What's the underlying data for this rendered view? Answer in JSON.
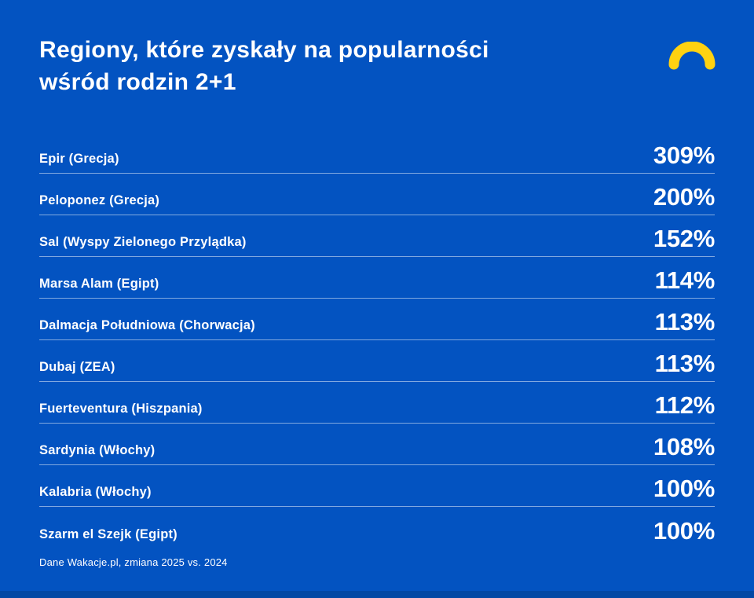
{
  "header": {
    "title_line1": "Regiony, które zyskały na popularności",
    "title_line2": "wśród rodzin 2+1"
  },
  "footer": {
    "source_note": "Dane Wakacje.pl, zmiana 2025 vs. 2024"
  },
  "colors": {
    "background": "#0353C1",
    "accent_yellow": "#FFD211",
    "divider": "rgba(255,255,255,0.5)",
    "bottom_bar": "#0348A4",
    "text": "#FFFFFF"
  },
  "icons": {
    "logo": "wakacje-arc-logo"
  },
  "rows": [
    {
      "label": "Epir (Grecja)",
      "value": "309%"
    },
    {
      "label": "Peloponez (Grecja)",
      "value": "200%"
    },
    {
      "label": "Sal (Wyspy Zielonego Przylądka)",
      "value": "152%"
    },
    {
      "label": "Marsa Alam (Egipt)",
      "value": "114%"
    },
    {
      "label": "Dalmacja Południowa (Chorwacja)",
      "value": "113%"
    },
    {
      "label": "Dubaj (ZEA)",
      "value": "113%"
    },
    {
      "label": "Fuerteventura (Hiszpania)",
      "value": "112%"
    },
    {
      "label": "Sardynia (Włochy)",
      "value": "108%"
    },
    {
      "label": "Kalabria (Włochy)",
      "value": "100%"
    },
    {
      "label": "Szarm el Szejk (Egipt)",
      "value": "100%"
    }
  ],
  "chart_data": {
    "type": "table",
    "title": "Regiony, które zyskały na popularności wśród rodzin 2+1",
    "categories": [
      "Epir (Grecja)",
      "Peloponez (Grecja)",
      "Sal (Wyspy Zielonego Przylądka)",
      "Marsa Alam (Egipt)",
      "Dalmacja Południowa (Chorwacja)",
      "Dubaj (ZEA)",
      "Fuerteventura (Hiszpania)",
      "Sardynia (Włochy)",
      "Kalabria (Włochy)",
      "Szarm el Szejk (Egipt)"
    ],
    "values": [
      309,
      200,
      152,
      114,
      113,
      113,
      112,
      108,
      100,
      100
    ],
    "unit": "%",
    "value_labels": [
      "309%",
      "200%",
      "152%",
      "114%",
      "113%",
      "113%",
      "112%",
      "108%",
      "100%",
      "100%"
    ],
    "source": "Dane Wakacje.pl, zmiana 2025 vs. 2024",
    "legend": false,
    "grid": false
  }
}
